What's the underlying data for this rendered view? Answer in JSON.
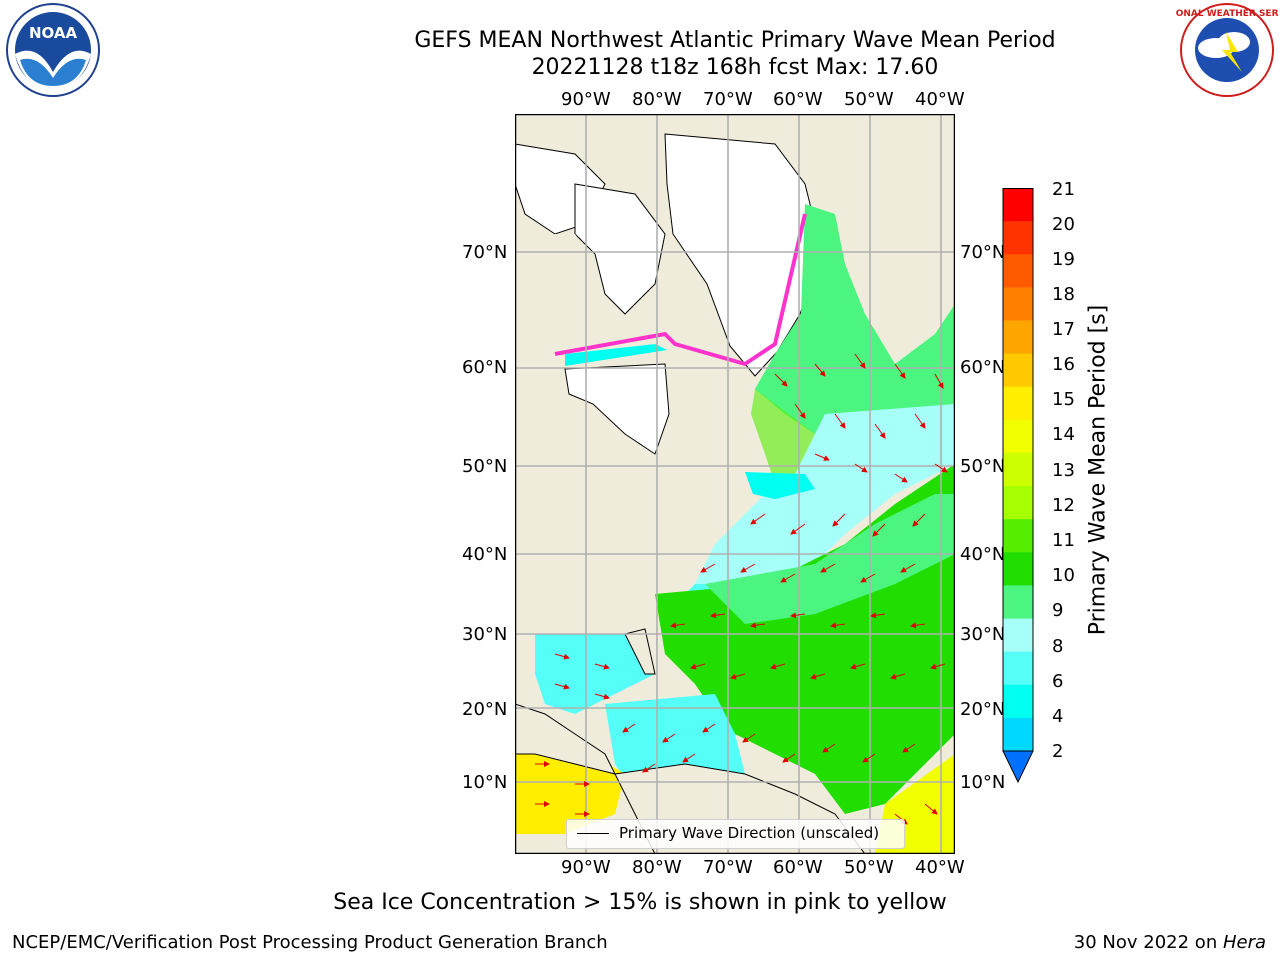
{
  "header": {
    "title_line1": "GEFS MEAN Northwest Atlantic Primary Wave Mean Period",
    "title_line2": "20221128 t18z 168h fcst   Max: 17.60"
  },
  "logos": {
    "noaa_text": "NOAA",
    "nws_text": "NATIONAL WEATHER SERVICE"
  },
  "map": {
    "lon_labels": [
      "90°W",
      "80°W",
      "70°W",
      "60°W",
      "50°W",
      "40°W"
    ],
    "lat_labels": [
      "70°N",
      "60°N",
      "50°N",
      "40°N",
      "30°N",
      "20°N",
      "10°N"
    ],
    "legend_label": "Primary Wave Direction (unscaled)"
  },
  "colorbar": {
    "title": "Primary Wave Mean Period [s]",
    "ticks": [
      "21",
      "20",
      "19",
      "18",
      "17",
      "16",
      "15",
      "14",
      "13",
      "12",
      "11",
      "10",
      "9",
      "8",
      "6",
      "4",
      "2"
    ],
    "colors": [
      "#ff0000",
      "#ff3300",
      "#ff5a00",
      "#ff8000",
      "#ffa500",
      "#ffc800",
      "#ffee00",
      "#f2ff00",
      "#ccff00",
      "#a6ff00",
      "#55ee00",
      "#22dd00",
      "#4cf580",
      "#a6fff8",
      "#55fff8",
      "#00fff0",
      "#00d8ff",
      "#0070ff"
    ]
  },
  "notes": {
    "sea_ice": "Sea Ice Concentration > 15% is shown in pink to yellow"
  },
  "footer": {
    "left": "NCEP/EMC/Verification Post Processing Product Generation Branch",
    "date": "30 Nov 2022 on ",
    "host": "Hera"
  }
}
